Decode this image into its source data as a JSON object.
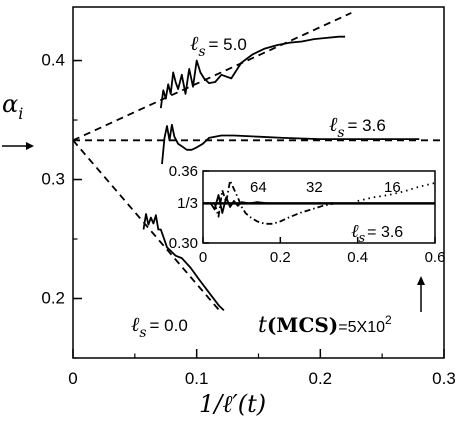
{
  "chart_data": [
    {
      "type": "line",
      "title": "",
      "xlabel": "1/ℓ′(t)",
      "ylabel": "αᵢ",
      "xlim": [
        0,
        0.3
      ],
      "ylim": [
        0.15,
        0.445
      ],
      "xticks": [
        "0",
        "0.1",
        "0.2",
        "0.3"
      ],
      "yticks": [
        "0.2",
        "0.3",
        "0.4"
      ],
      "series": [
        {
          "name": "ℓs = 5.0",
          "style": "solid",
          "x": [
            0.071,
            0.073,
            0.075,
            0.077,
            0.079,
            0.081,
            0.083,
            0.085,
            0.088,
            0.091,
            0.094,
            0.097,
            0.1,
            0.103,
            0.106,
            0.11,
            0.115,
            0.12,
            0.128,
            0.136,
            0.145,
            0.155,
            0.165,
            0.175,
            0.185,
            0.195,
            0.205,
            0.215,
            0.22
          ],
          "y": [
            0.36,
            0.375,
            0.368,
            0.38,
            0.372,
            0.39,
            0.382,
            0.376,
            0.388,
            0.372,
            0.393,
            0.378,
            0.4,
            0.39,
            0.385,
            0.381,
            0.382,
            0.388,
            0.385,
            0.398,
            0.405,
            0.41,
            0.413,
            0.415,
            0.416,
            0.418,
            0.419,
            0.42,
            0.42
          ]
        },
        {
          "name": "ℓs = 3.6",
          "style": "solid",
          "x": [
            0.072,
            0.074,
            0.076,
            0.078,
            0.08,
            0.082,
            0.085,
            0.088,
            0.092,
            0.096,
            0.1,
            0.105,
            0.11,
            0.12,
            0.13,
            0.15,
            0.17,
            0.2,
            0.24,
            0.28
          ],
          "y": [
            0.313,
            0.335,
            0.345,
            0.333,
            0.346,
            0.336,
            0.33,
            0.328,
            0.325,
            0.325,
            0.327,
            0.33,
            0.335,
            0.337,
            0.337,
            0.336,
            0.335,
            0.334,
            0.334,
            0.334
          ]
        },
        {
          "name": "ℓs = 0.0",
          "style": "solid",
          "x": [
            0.057,
            0.059,
            0.061,
            0.063,
            0.065,
            0.067,
            0.069,
            0.071,
            0.073,
            0.076,
            0.079,
            0.083,
            0.088,
            0.095,
            0.102,
            0.11,
            0.118,
            0.122
          ],
          "y": [
            0.258,
            0.271,
            0.262,
            0.268,
            0.263,
            0.27,
            0.258,
            0.258,
            0.252,
            0.243,
            0.24,
            0.236,
            0.234,
            0.226,
            0.216,
            0.205,
            0.194,
            0.19
          ]
        },
        {
          "name": "",
          "style": "dashed",
          "x": [
            0,
            0.225
          ],
          "y": [
            0.333,
            0.44
          ]
        },
        {
          "name": "",
          "style": "dashed",
          "x": [
            0,
            0.3
          ],
          "y": [
            0.333,
            0.333
          ]
        },
        {
          "name": "",
          "style": "dashed",
          "x": [
            0,
            0.12
          ],
          "y": [
            0.333,
            0.188
          ]
        }
      ]
    },
    {
      "type": "line",
      "title": "",
      "xlabel": "",
      "ylabel": "",
      "xlim": [
        0,
        0.6
      ],
      "ylim": [
        0.3,
        0.36
      ],
      "xticks": [
        "0",
        "0.2",
        "0.4",
        "0.6"
      ],
      "yticks": [
        "0.30",
        "1/3",
        "0.36"
      ],
      "series": [
        {
          "name": "ℓs = 3.6",
          "style": "solid",
          "x": [
            0.02,
            0.03,
            0.04,
            0.05,
            0.06,
            0.07,
            0.08,
            0.09,
            0.1,
            0.12,
            0.14,
            0.17,
            0.2,
            0.24,
            0.28
          ],
          "y": [
            0.333,
            0.328,
            0.34,
            0.325,
            0.338,
            0.33,
            0.335,
            0.331,
            0.334,
            0.333,
            0.334,
            0.333,
            0.333,
            0.333,
            0.333
          ]
        },
        {
          "name": "",
          "style": "dashdot",
          "x": [
            0.03,
            0.04,
            0.05,
            0.06,
            0.07,
            0.08,
            0.09,
            0.1,
            0.11,
            0.12,
            0.14,
            0.16,
            0.18,
            0.2,
            0.22,
            0.25,
            0.28,
            0.31,
            0.34,
            0.37
          ],
          "y": [
            0.333,
            0.322,
            0.344,
            0.334,
            0.352,
            0.345,
            0.338,
            0.33,
            0.325,
            0.322,
            0.318,
            0.316,
            0.316,
            0.318,
            0.321,
            0.325,
            0.328,
            0.331,
            0.333,
            0.333
          ]
        },
        {
          "name": "",
          "style": "dotted",
          "x": [
            0.4,
            0.44,
            0.48,
            0.52,
            0.56,
            0.6
          ],
          "y": [
            0.335,
            0.338,
            0.34,
            0.343,
            0.347,
            0.35
          ]
        },
        {
          "name": "",
          "style": "solid-thick",
          "x": [
            0,
            0.6
          ],
          "y": [
            0.333,
            0.333
          ]
        }
      ],
      "annotations": [
        "64",
        "32",
        "16"
      ]
    }
  ],
  "labels": {
    "ylabel": "α",
    "ylabel_sub": "i",
    "xlabel": "1/ℓ′(t)",
    "l5_pre": "ℓ",
    "l5_sub": "s",
    "l5_val": "= 5.0",
    "l36_pre": "ℓ",
    "l36_sub": "s",
    "l36_val": "= 3.6",
    "l0_pre": "ℓ",
    "l0_sub": "s",
    "l0_val": "= 0.0",
    "in_l36_pre": "ℓ",
    "in_l36_sub": "s",
    "in_l36_val": "= 3.6",
    "t_pre": "t",
    "t_bold": "(MCS)",
    "t_val": "=5X10",
    "t_exp": "2",
    "ann64": "64",
    "ann32": "32",
    "ann16": "16"
  }
}
